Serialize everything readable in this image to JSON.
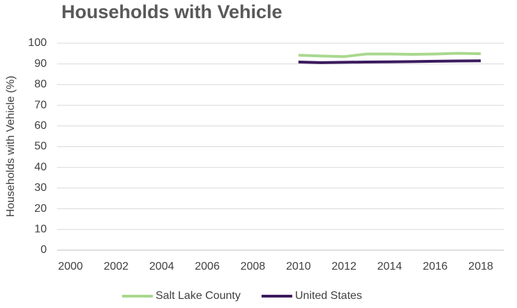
{
  "chart_data": {
    "type": "line",
    "title": "Households with Vehicle",
    "ylabel": "Households with Vehicle (%)",
    "categories": [
      "2000",
      null,
      "2002",
      null,
      "2004",
      null,
      "2006",
      null,
      "2008",
      null,
      "2010",
      null,
      "2012",
      null,
      "2014",
      null,
      "2016",
      null,
      "2018"
    ],
    "series": [
      {
        "name": "Salt Lake County",
        "color": "#a9d88f",
        "values": [
          null,
          null,
          null,
          null,
          null,
          null,
          null,
          null,
          null,
          null,
          94.2,
          93.8,
          93.5,
          94.8,
          94.8,
          94.6,
          94.8,
          95.1,
          94.9
        ]
      },
      {
        "name": "United States",
        "color": "#3b1a5e",
        "values": [
          null,
          null,
          null,
          null,
          null,
          null,
          null,
          null,
          null,
          null,
          90.9,
          90.6,
          90.8,
          90.9,
          91.0,
          91.1,
          91.3,
          91.4,
          91.5
        ]
      }
    ],
    "ylim": [
      0,
      100
    ],
    "yticks": [
      0,
      10,
      20,
      30,
      40,
      50,
      60,
      70,
      80,
      90,
      100
    ],
    "grid": true,
    "legend": "bottom"
  }
}
